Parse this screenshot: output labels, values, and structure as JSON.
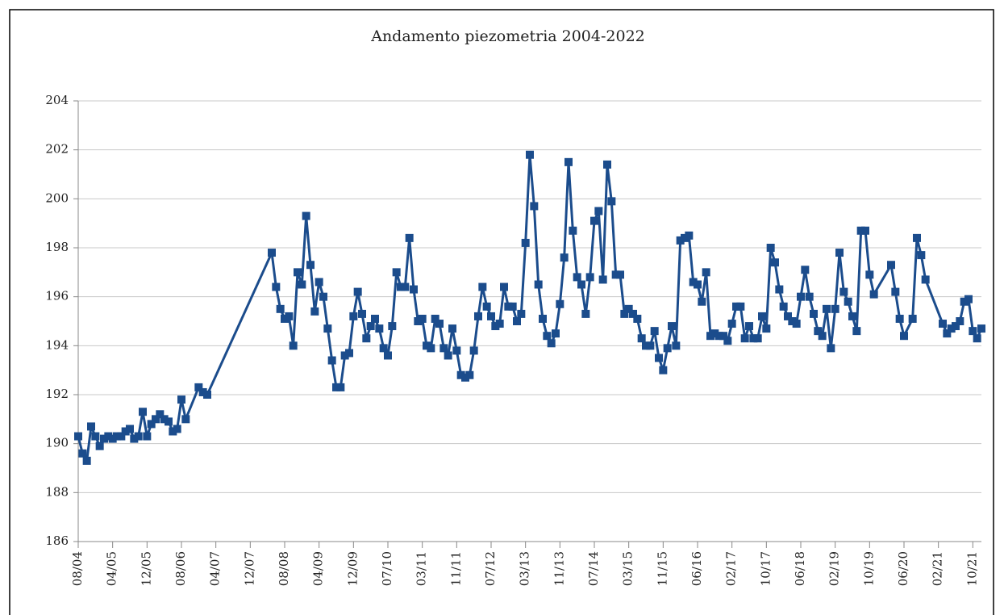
{
  "chart_data": {
    "type": "line",
    "title": "Andamento piezometria 2004-2022",
    "categories": [
      "08/04",
      null,
      null,
      null,
      null,
      null,
      null,
      null,
      "04/05",
      null,
      null,
      null,
      null,
      null,
      null,
      null,
      "12/05",
      null,
      null,
      null,
      null,
      null,
      null,
      null,
      "08/06",
      null,
      null,
      null,
      null,
      null,
      null,
      null,
      "04/07",
      null,
      null,
      null,
      null,
      null,
      null,
      null,
      "12/07",
      null,
      null,
      null,
      null,
      null,
      null,
      null,
      "08/08",
      null,
      null,
      null,
      null,
      null,
      null,
      null,
      "04/09",
      null,
      null,
      null,
      null,
      null,
      null,
      null,
      "12/09",
      null,
      null,
      null,
      null,
      null,
      null,
      null,
      "07/10",
      null,
      null,
      null,
      null,
      null,
      null,
      null,
      "03/11",
      null,
      null,
      null,
      null,
      null,
      null,
      null,
      "11/11",
      null,
      null,
      null,
      null,
      null,
      null,
      null,
      "07/12",
      null,
      null,
      null,
      null,
      null,
      null,
      null,
      "03/13",
      null,
      null,
      null,
      null,
      null,
      null,
      null,
      "11/13",
      null,
      null,
      null,
      null,
      null,
      null,
      null,
      "07/14",
      null,
      null,
      null,
      null,
      null,
      null,
      null,
      "03/15",
      null,
      null,
      null,
      null,
      null,
      null,
      null,
      "11/15",
      null,
      null,
      null,
      null,
      null,
      null,
      null,
      "06/16",
      null,
      null,
      null,
      null,
      null,
      null,
      null,
      "02/17",
      null,
      null,
      null,
      null,
      null,
      null,
      null,
      "10/17",
      null,
      null,
      null,
      null,
      null,
      null,
      null,
      "06/18",
      null,
      null,
      null,
      null,
      null,
      null,
      null,
      "02/19",
      null,
      null,
      null,
      null,
      null,
      null,
      null,
      "10/19",
      null,
      null,
      null,
      null,
      null,
      null,
      null,
      "06/20",
      null,
      null,
      null,
      null,
      null,
      null,
      null,
      "02/21",
      null,
      null,
      null,
      null,
      null,
      null,
      null,
      "10/21",
      null,
      null
    ],
    "series": [
      {
        "color": "#1b4c8c",
        "values": [
          190.3,
          189.6,
          189.3,
          190.7,
          190.3,
          189.9,
          190.2,
          190.3,
          190.2,
          190.3,
          190.3,
          190.5,
          190.6,
          190.2,
          190.3,
          191.3,
          190.3,
          190.8,
          191.0,
          191.2,
          191.0,
          190.9,
          190.5,
          190.6,
          191.8,
          191.0,
          null,
          null,
          192.3,
          192.1,
          192.0,
          null,
          null,
          null,
          null,
          null,
          null,
          null,
          null,
          null,
          null,
          null,
          null,
          null,
          null,
          197.8,
          196.4,
          195.5,
          195.1,
          195.2,
          194.0,
          197.0,
          196.5,
          199.3,
          197.3,
          195.4,
          196.6,
          196.0,
          194.7,
          193.4,
          192.3,
          192.3,
          193.6,
          193.7,
          195.2,
          196.2,
          195.3,
          194.3,
          194.8,
          195.1,
          194.7,
          193.9,
          193.6,
          194.8,
          197.0,
          196.4,
          196.4,
          198.4,
          196.3,
          195.0,
          195.1,
          194.0,
          193.9,
          195.1,
          194.9,
          193.9,
          193.6,
          194.7,
          193.8,
          192.8,
          192.7,
          192.8,
          193.8,
          195.2,
          196.4,
          195.6,
          195.2,
          194.8,
          194.9,
          196.4,
          195.6,
          195.6,
          195.0,
          195.3,
          198.2,
          201.8,
          199.7,
          196.5,
          195.1,
          194.4,
          194.1,
          194.5,
          195.7,
          197.6,
          201.5,
          198.7,
          196.8,
          196.5,
          195.3,
          196.8,
          199.1,
          199.5,
          196.7,
          201.4,
          199.9,
          196.9,
          196.9,
          195.3,
          195.5,
          195.3,
          195.1,
          194.3,
          194.0,
          194.0,
          194.6,
          193.5,
          193.0,
          193.9,
          194.8,
          194.0,
          198.3,
          198.4,
          198.5,
          196.6,
          196.5,
          195.8,
          197.0,
          194.4,
          194.5,
          194.4,
          194.4,
          194.2,
          194.9,
          195.6,
          195.6,
          194.3,
          194.8,
          194.3,
          194.3,
          195.2,
          194.7,
          198.0,
          197.4,
          196.3,
          195.6,
          195.2,
          195.0,
          194.9,
          196.0,
          197.1,
          196.0,
          195.3,
          194.6,
          194.4,
          195.5,
          193.9,
          195.5,
          197.8,
          196.2,
          195.8,
          195.2,
          194.6,
          198.7,
          198.7,
          196.9,
          196.1,
          null,
          null,
          null,
          197.3,
          196.2,
          195.1,
          194.4,
          null,
          195.1,
          198.4,
          197.7,
          196.7,
          null,
          null,
          null,
          194.9,
          194.5,
          194.7,
          194.8,
          195.0,
          195.8,
          195.9,
          194.6,
          194.3,
          194.7
        ]
      }
    ],
    "ylim": [
      186,
      204
    ],
    "yticks": [
      186,
      188,
      190,
      192,
      194,
      196,
      198,
      200,
      202,
      204
    ],
    "grid": true,
    "connect_gaps": true,
    "marker": "square"
  }
}
